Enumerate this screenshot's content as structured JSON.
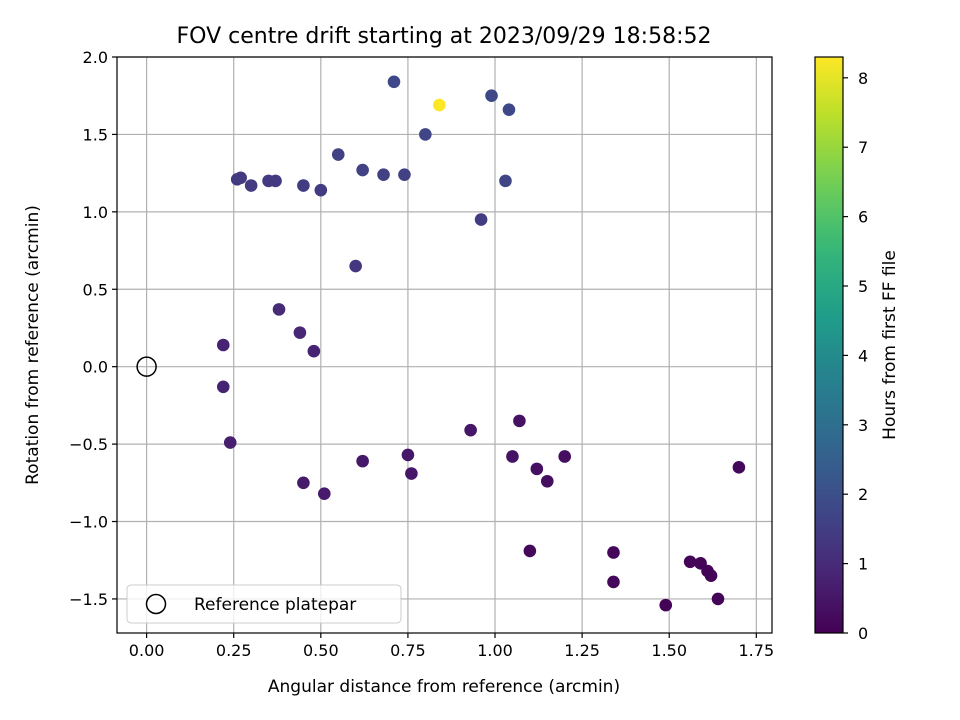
{
  "chart_data": {
    "type": "scatter",
    "title": "FOV centre drift starting at 2023/09/29 18:58:52",
    "xlabel": "Angular distance from reference (arcmin)",
    "ylabel": "Rotation from reference (arcmin)",
    "colorbar_label": "Hours from first FF file",
    "xlim": [
      -0.085,
      1.795
    ],
    "ylim": [
      -1.72,
      2.0
    ],
    "clim": [
      0,
      8.3
    ],
    "x_ticks": [
      "0.00",
      "0.25",
      "0.50",
      "0.75",
      "1.00",
      "1.25",
      "1.50",
      "1.75"
    ],
    "y_ticks": [
      "−1.5",
      "−1.0",
      "−0.5",
      "0.0",
      "0.5",
      "1.0",
      "1.5",
      "2.0"
    ],
    "colorbar_ticks": [
      "0",
      "1",
      "2",
      "3",
      "4",
      "5",
      "6",
      "7",
      "8"
    ],
    "grid": true,
    "colormap": "viridis",
    "legend_position": "lower-left",
    "reference": {
      "name": "Reference platepar",
      "x": 0.0,
      "y": 0.0
    },
    "points": [
      {
        "x": 1.49,
        "y": -1.54,
        "hours": 0.05
      },
      {
        "x": 1.64,
        "y": -1.5,
        "hours": 0.1
      },
      {
        "x": 1.62,
        "y": -1.35,
        "hours": 0.1
      },
      {
        "x": 1.61,
        "y": -1.32,
        "hours": 0.1
      },
      {
        "x": 1.59,
        "y": -1.27,
        "hours": 0.1
      },
      {
        "x": 1.56,
        "y": -1.26,
        "hours": 0.1
      },
      {
        "x": 1.34,
        "y": -1.39,
        "hours": 0.15
      },
      {
        "x": 1.34,
        "y": -1.2,
        "hours": 0.15
      },
      {
        "x": 1.1,
        "y": -1.19,
        "hours": 0.2
      },
      {
        "x": 1.7,
        "y": -0.65,
        "hours": 0.2
      },
      {
        "x": 1.2,
        "y": -0.58,
        "hours": 0.3
      },
      {
        "x": 1.15,
        "y": -0.74,
        "hours": 0.3
      },
      {
        "x": 1.12,
        "y": -0.66,
        "hours": 0.35
      },
      {
        "x": 1.05,
        "y": -0.58,
        "hours": 0.4
      },
      {
        "x": 1.07,
        "y": -0.35,
        "hours": 0.4
      },
      {
        "x": 0.93,
        "y": -0.41,
        "hours": 0.5
      },
      {
        "x": 0.75,
        "y": -0.57,
        "hours": 0.5
      },
      {
        "x": 0.76,
        "y": -0.69,
        "hours": 0.5
      },
      {
        "x": 0.62,
        "y": -0.61,
        "hours": 0.55
      },
      {
        "x": 0.51,
        "y": -0.82,
        "hours": 0.6
      },
      {
        "x": 0.45,
        "y": -0.75,
        "hours": 0.6
      },
      {
        "x": 0.24,
        "y": -0.49,
        "hours": 0.7
      },
      {
        "x": 0.22,
        "y": -0.13,
        "hours": 0.8
      },
      {
        "x": 0.22,
        "y": 0.14,
        "hours": 0.8
      },
      {
        "x": 0.48,
        "y": 0.1,
        "hours": 0.8
      },
      {
        "x": 0.44,
        "y": 0.22,
        "hours": 0.9
      },
      {
        "x": 0.38,
        "y": 0.37,
        "hours": 1.0
      },
      {
        "x": 0.6,
        "y": 0.65,
        "hours": 1.3
      },
      {
        "x": 0.96,
        "y": 0.95,
        "hours": 1.5
      },
      {
        "x": 0.26,
        "y": 1.21,
        "hours": 1.4
      },
      {
        "x": 0.27,
        "y": 1.22,
        "hours": 1.4
      },
      {
        "x": 0.3,
        "y": 1.17,
        "hours": 1.4
      },
      {
        "x": 0.35,
        "y": 1.2,
        "hours": 1.4
      },
      {
        "x": 0.37,
        "y": 1.2,
        "hours": 1.4
      },
      {
        "x": 0.45,
        "y": 1.17,
        "hours": 1.5
      },
      {
        "x": 0.5,
        "y": 1.14,
        "hours": 1.5
      },
      {
        "x": 0.55,
        "y": 1.37,
        "hours": 1.6
      },
      {
        "x": 0.62,
        "y": 1.27,
        "hours": 1.6
      },
      {
        "x": 0.68,
        "y": 1.24,
        "hours": 1.6
      },
      {
        "x": 0.74,
        "y": 1.24,
        "hours": 1.6
      },
      {
        "x": 1.03,
        "y": 1.2,
        "hours": 1.7
      },
      {
        "x": 0.8,
        "y": 1.5,
        "hours": 1.7
      },
      {
        "x": 0.71,
        "y": 1.84,
        "hours": 1.8
      },
      {
        "x": 0.99,
        "y": 1.75,
        "hours": 1.8
      },
      {
        "x": 1.04,
        "y": 1.66,
        "hours": 1.8
      },
      {
        "x": 0.84,
        "y": 1.69,
        "hours": 8.3
      }
    ]
  }
}
